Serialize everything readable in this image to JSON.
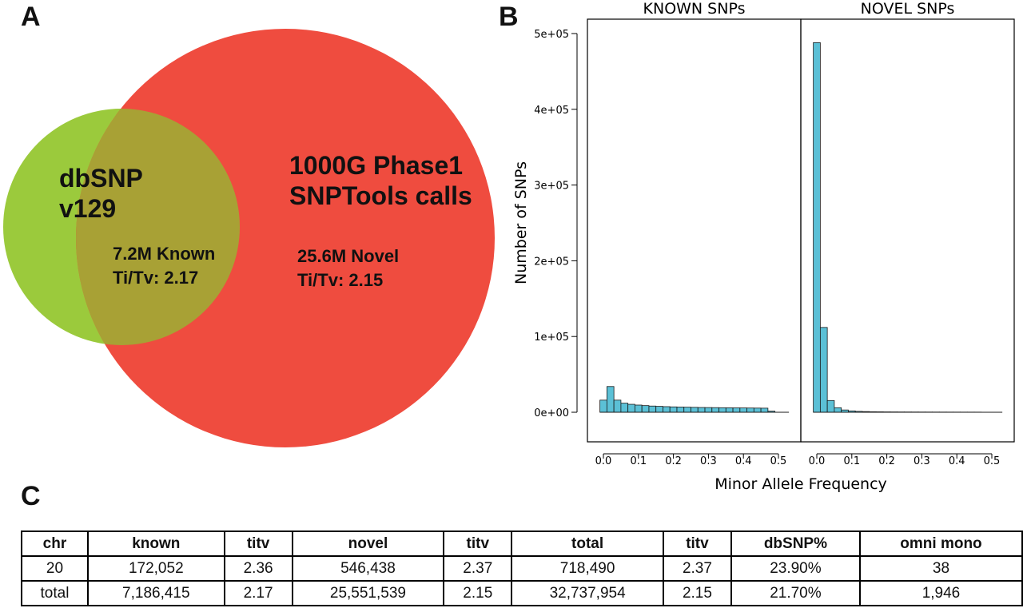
{
  "panels": {
    "a": "A",
    "b": "B",
    "c": "C"
  },
  "venn": {
    "left_set": [
      "dbSNP",
      "v129"
    ],
    "right_set": [
      "1000G Phase1",
      "SNPTools calls"
    ],
    "known": [
      "7.2M Known",
      "Ti/Tv: 2.17"
    ],
    "novel": [
      "25.6M Novel",
      "Ti/Tv: 2.15"
    ],
    "colors": {
      "left": "#9bca3c",
      "right": "#ef4c3f",
      "overlap": "#a8a135"
    }
  },
  "chart_data": {
    "type": "bar",
    "ylabel": "Number of SNPs",
    "xlabel": "Minor Allele Frequency",
    "ylim": [
      0,
      500000
    ],
    "yticks": [
      0,
      100000,
      200000,
      300000,
      400000,
      500000
    ],
    "ytick_labels": [
      "0e+00",
      "1e+05",
      "2e+05",
      "3e+05",
      "4e+05",
      "5e+05"
    ],
    "xlim": [
      -0.02,
      0.53
    ],
    "xticks": [
      0.0,
      0.1,
      0.2,
      0.3,
      0.4,
      0.5
    ],
    "xtick_labels": [
      "0.0",
      "0.1",
      "0.2",
      "0.3",
      "0.4",
      "0.5"
    ],
    "bin_width": 0.02,
    "bin_start": -0.01,
    "bar_color": "#5bc0d6",
    "facets": [
      {
        "name": "KNOWN SNPs",
        "values": [
          16000,
          34000,
          16000,
          12000,
          10500,
          9500,
          8800,
          8200,
          7800,
          7400,
          7100,
          6900,
          6700,
          6500,
          6300,
          6200,
          6100,
          6000,
          5900,
          5800,
          5700,
          5600,
          5500,
          5400,
          1500
        ]
      },
      {
        "name": "NOVEL SNPs",
        "values": [
          488000,
          112000,
          15500,
          6000,
          3000,
          1800,
          1200,
          900,
          700,
          600,
          500,
          450,
          400,
          370,
          340,
          310,
          290,
          270,
          250,
          230,
          220,
          210,
          200,
          190,
          100
        ]
      }
    ]
  },
  "table": {
    "headers": [
      "chr",
      "known",
      "titv",
      "novel",
      "titv",
      "total",
      "titv",
      "dbSNP%",
      "omni mono"
    ],
    "rows": [
      [
        "20",
        "172,052",
        "2.36",
        "546,438",
        "2.37",
        "718,490",
        "2.37",
        "23.90%",
        "38"
      ],
      [
        "total",
        "7,186,415",
        "2.17",
        "25,551,539",
        "2.15",
        "32,737,954",
        "2.15",
        "21.70%",
        "1,946"
      ]
    ]
  }
}
